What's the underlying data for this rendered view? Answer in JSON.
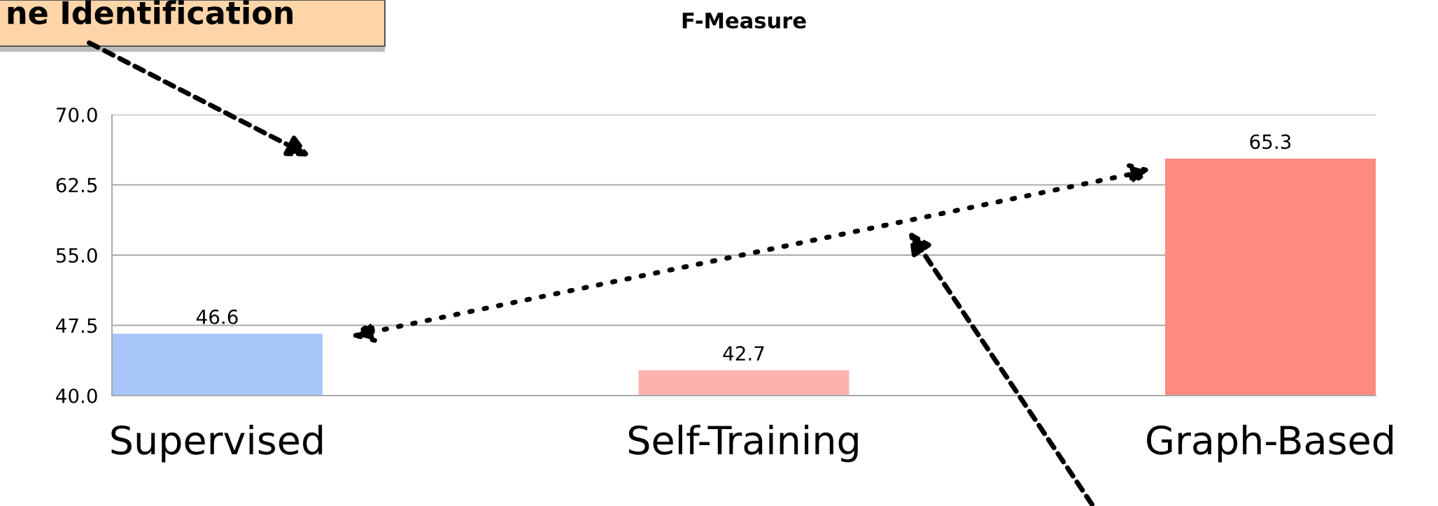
{
  "chart_data": {
    "type": "bar",
    "title": "F-Measure",
    "categories": [
      "Supervised",
      "Self-Training",
      "Graph-Based"
    ],
    "values": [
      46.6,
      42.7,
      65.3
    ],
    "colors": [
      "#a8c6fa",
      "#fdb3ad",
      "#ff8a80"
    ],
    "ylim": [
      40,
      70
    ],
    "yticks": [
      {
        "value": 40,
        "label": "40.0"
      },
      {
        "value": 47.5,
        "label": "47.5"
      },
      {
        "value": 55,
        "label": "55.0"
      },
      {
        "value": 62.5,
        "label": "62.5"
      },
      {
        "value": 70,
        "label": "70.0"
      }
    ],
    "grid": "y",
    "data_labels": true,
    "annotations": [
      "ne Identification"
    ]
  }
}
